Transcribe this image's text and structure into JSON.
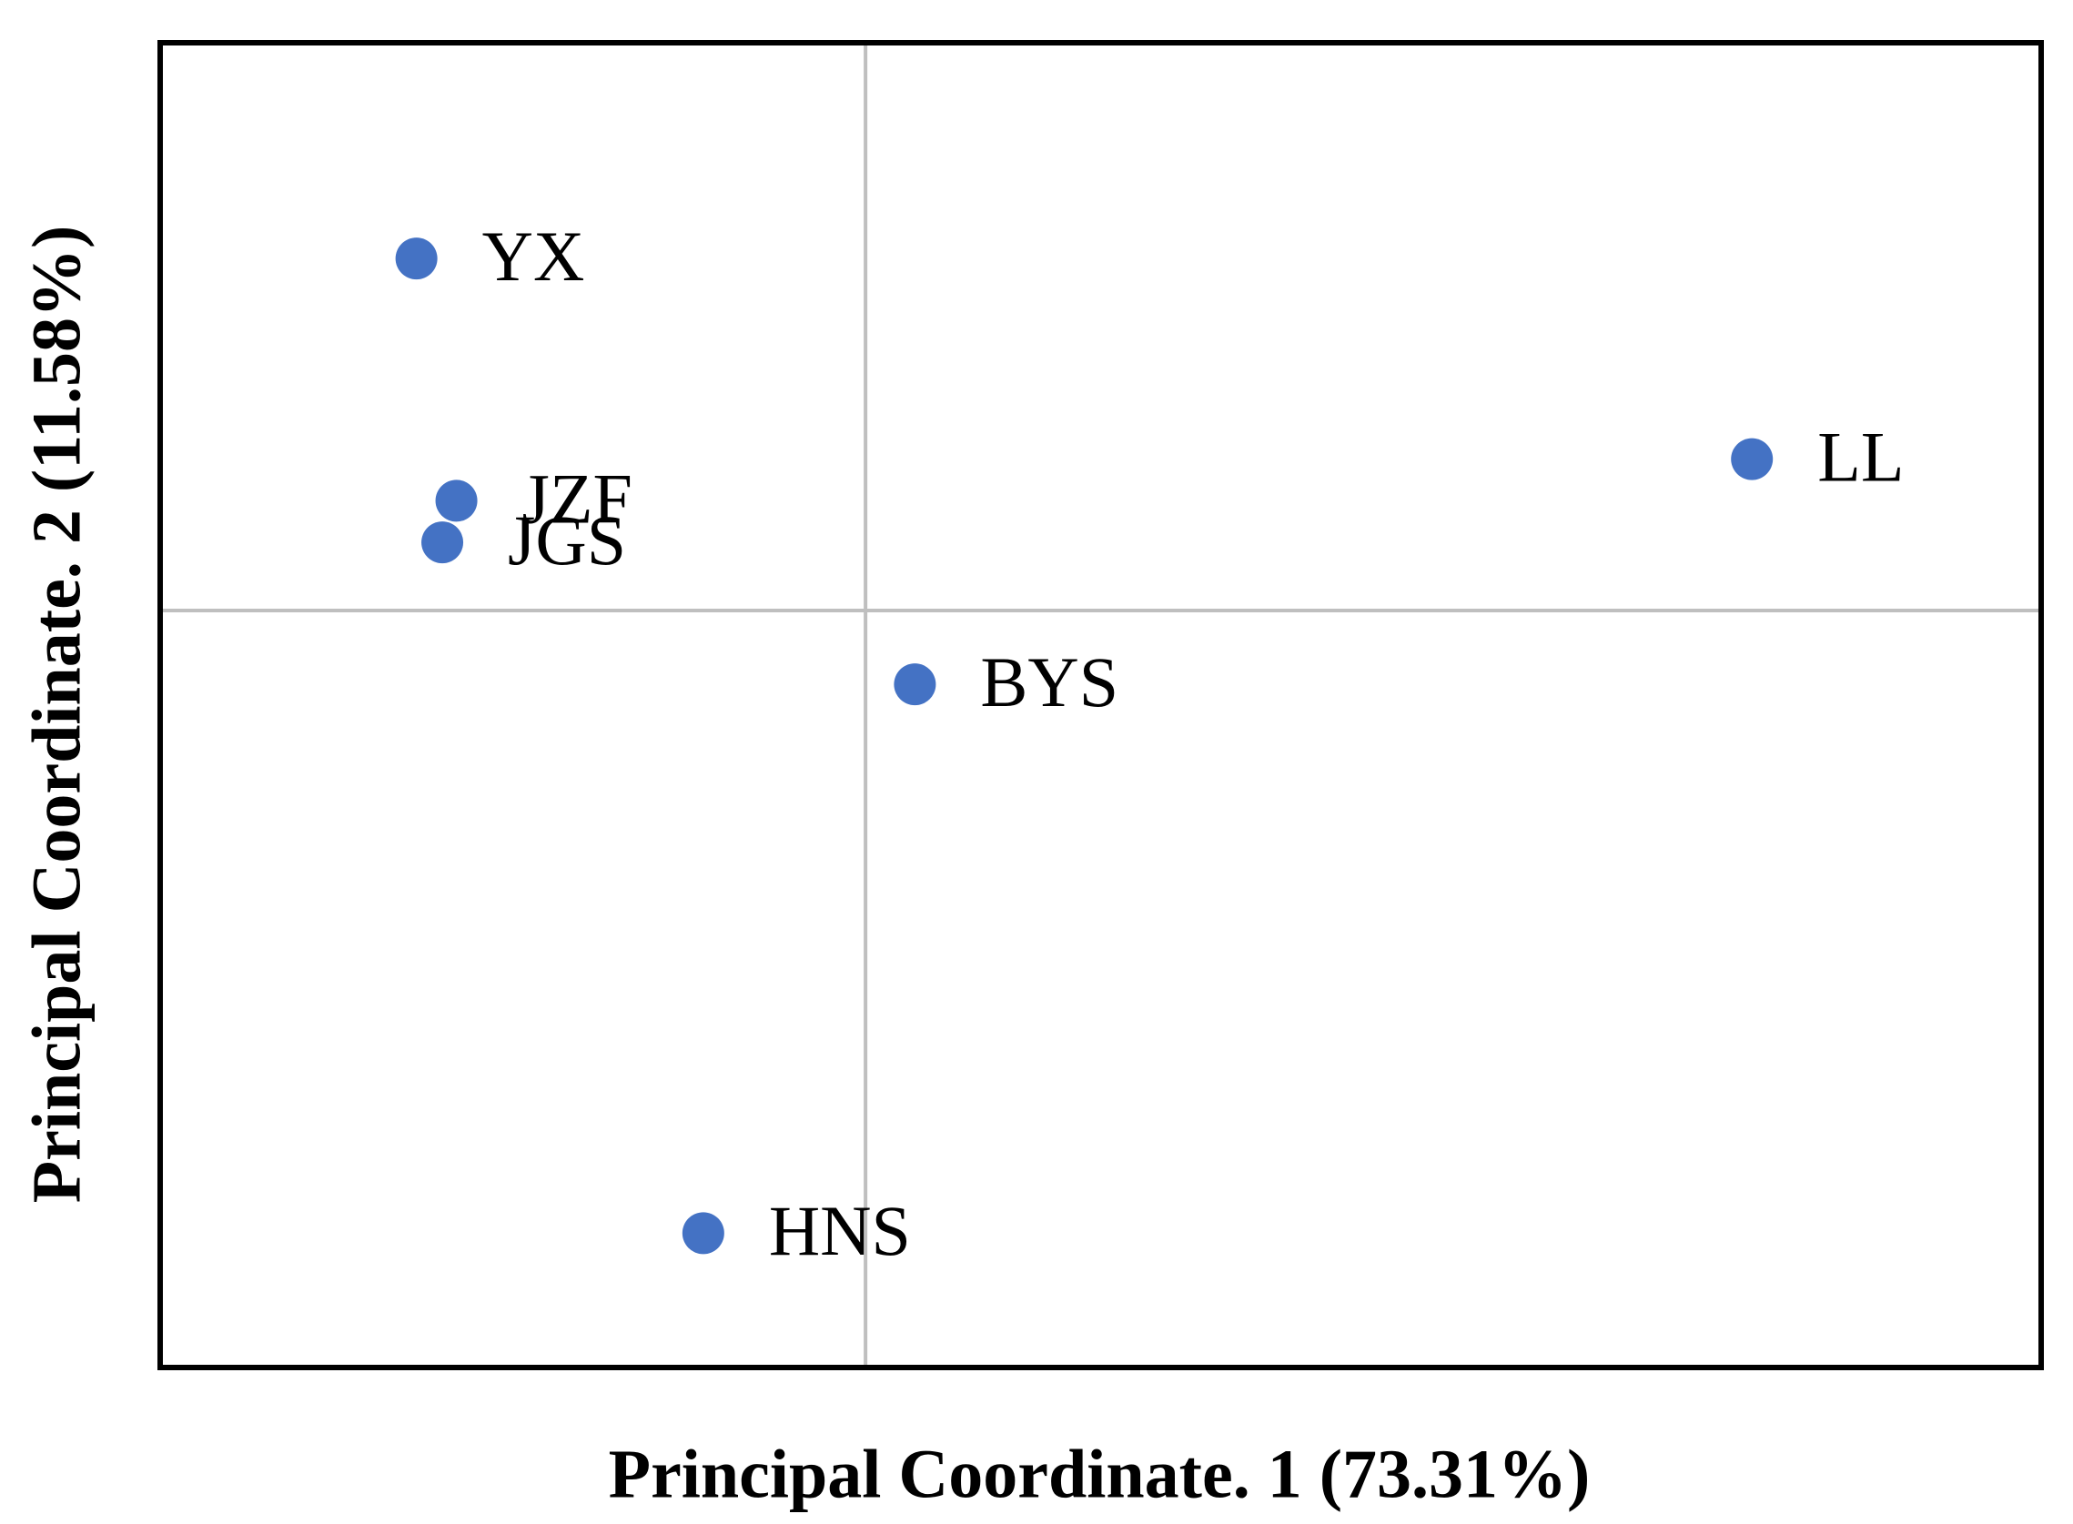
{
  "chart_data": {
    "type": "scatter",
    "x_label": "Principal Coordinate. 1 (73.31%)",
    "y_label": "Principal Coordinate. 2 (11.58%)",
    "labels": [
      "YX",
      "JZF",
      "JGS",
      "LL",
      "BYS",
      "HNS"
    ],
    "x": [
      -1.91,
      -1.74,
      -1.8,
      3.77,
      0.21,
      -0.69
    ],
    "values": [
      1.86,
      0.58,
      0.36,
      0.8,
      -0.39,
      -3.29
    ],
    "color": "#4472c4",
    "xlim": [
      -3,
      5
    ],
    "ylim": [
      -4,
      3
    ],
    "xticks": [
      0
    ],
    "yticks": [
      0
    ],
    "grid": true
  }
}
